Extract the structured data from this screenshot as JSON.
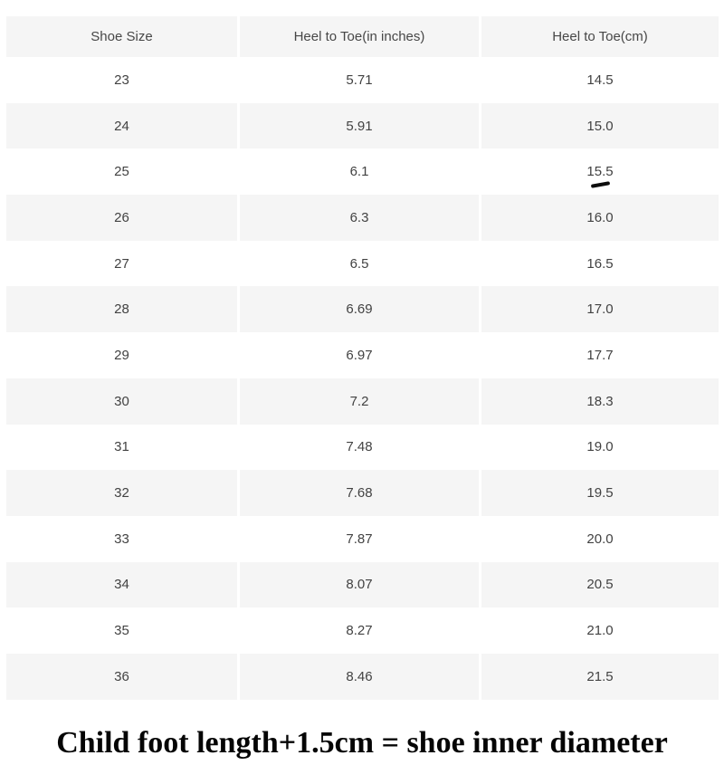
{
  "table": {
    "headers": [
      "Shoe Size",
      "Heel to Toe(in inches)",
      "Heel to Toe(cm)"
    ],
    "rows": [
      [
        "23",
        "5.71",
        "14.5"
      ],
      [
        "24",
        "5.91",
        "15.0"
      ],
      [
        "25",
        "6.1",
        "15.5"
      ],
      [
        "26",
        "6.3",
        "16.0"
      ],
      [
        "27",
        "6.5",
        "16.5"
      ],
      [
        "28",
        "6.69",
        "17.0"
      ],
      [
        "29",
        "6.97",
        "17.7"
      ],
      [
        "30",
        "7.2",
        "18.3"
      ],
      [
        "31",
        "7.48",
        "19.0"
      ],
      [
        "32",
        "7.68",
        "19.5"
      ],
      [
        "33",
        "7.87",
        "20.0"
      ],
      [
        "34",
        "8.07",
        "20.5"
      ],
      [
        "35",
        "8.27",
        "21.0"
      ],
      [
        "36",
        "8.46",
        "21.5"
      ]
    ]
  },
  "caption": "Child foot length+1.5cm = shoe inner diameter",
  "colors": {
    "row_alt_background": "#f5f5f5",
    "row_background": "#ffffff",
    "table_text": "#424242",
    "caption_text": "#050505",
    "pen_mark": "#0d0d0d"
  },
  "annotation": {
    "pen_mark_under_value": "15.5",
    "pen_mark_row": "25"
  },
  "chart_data": {
    "type": "table",
    "title": "",
    "columns": [
      "Shoe Size",
      "Heel to Toe(in inches)",
      "Heel to Toe(cm)"
    ],
    "rows": [
      [
        23,
        5.71,
        14.5
      ],
      [
        24,
        5.91,
        15.0
      ],
      [
        25,
        6.1,
        15.5
      ],
      [
        26,
        6.3,
        16.0
      ],
      [
        27,
        6.5,
        16.5
      ],
      [
        28,
        6.69,
        17.0
      ],
      [
        29,
        6.97,
        17.7
      ],
      [
        30,
        7.2,
        18.3
      ],
      [
        31,
        7.48,
        19.0
      ],
      [
        32,
        7.68,
        19.5
      ],
      [
        33,
        7.87,
        20.0
      ],
      [
        34,
        8.07,
        20.5
      ],
      [
        35,
        8.27,
        21.0
      ],
      [
        36,
        8.46,
        21.5
      ]
    ],
    "caption": "Child foot length+1.5cm = shoe inner diameter",
    "layout_hints": {
      "zebra_striping": true,
      "first_data_row_background": "white",
      "header_background": "light-gray",
      "grid": "off",
      "column_alignment": "center"
    }
  }
}
